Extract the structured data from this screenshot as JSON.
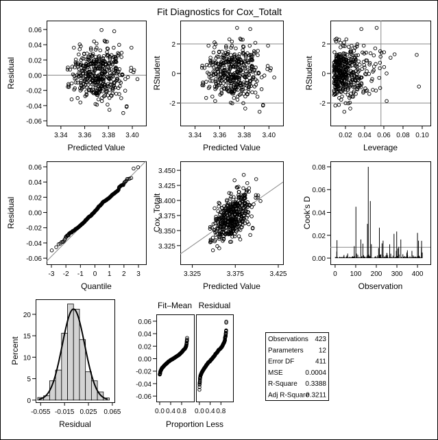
{
  "title": "Fit Diagnostics for Cox_Totalt",
  "chart_data": [
    {
      "type": "scatter",
      "name": "residual-vs-predicted",
      "xlabel": "Predicted Value",
      "ylabel": "Residual",
      "xlim": [
        3.328,
        3.4115
      ],
      "ylim": [
        -0.0663,
        0.0717
      ],
      "xticks": [
        "3.34",
        "3.36",
        "3.38",
        "3.40"
      ],
      "yticks": [
        "-0.06",
        "-0.04",
        "-0.02",
        "0.00",
        "0.02",
        "0.04",
        "0.06"
      ],
      "reference_lines_y": [
        0
      ]
    },
    {
      "type": "scatter",
      "name": "rstudent-vs-predicted",
      "xlabel": "Predicted Value",
      "ylabel": "RStudent",
      "xlim": [
        3.328,
        3.4115
      ],
      "ylim": [
        -3.53,
        3.58
      ],
      "xticks": [
        "3.34",
        "3.36",
        "3.38",
        "3.40"
      ],
      "yticks": [
        "-2",
        "0",
        "2"
      ],
      "reference_lines_y": [
        -2,
        2
      ]
    },
    {
      "type": "scatter",
      "name": "rstudent-vs-leverage",
      "xlabel": "Leverage",
      "ylabel": "RStudent",
      "xlim": [
        0.0043,
        0.1086
      ],
      "ylim": [
        -3.53,
        3.58
      ],
      "xticks": [
        "0.02",
        "0.04",
        "0.06",
        "0.08",
        "0.10"
      ],
      "yticks": [
        "-2",
        "0",
        "2"
      ],
      "reference_lines_y": [
        -2,
        2
      ],
      "reference_lines_x": [
        0.057
      ]
    },
    {
      "type": "scatter",
      "name": "qq-plot",
      "xlabel": "Quantile",
      "ylabel": "Residual",
      "xlim": [
        -3.33,
        3.52
      ],
      "ylim": [
        -0.068,
        0.0672
      ],
      "xticks": [
        "-3",
        "-2",
        "-1",
        "0",
        "1",
        "2",
        "3"
      ],
      "yticks": [
        "-0.06",
        "-0.04",
        "-0.02",
        "0.00",
        "0.02",
        "0.04",
        "0.06"
      ]
    },
    {
      "type": "scatter",
      "name": "observed-vs-predicted",
      "xlabel": "Predicted Value",
      "ylabel": "Cox_Totalt",
      "xlim": [
        3.311,
        3.4306
      ],
      "ylim": [
        3.294,
        3.465
      ],
      "xticks": [
        "3.325",
        "3.375",
        "3.425"
      ],
      "yticks": [
        "3.325",
        "3.350",
        "3.375",
        "3.400",
        "3.425",
        "3.450"
      ],
      "diagonal": true
    },
    {
      "type": "bar",
      "name": "cooks-d",
      "xlabel": "Observation",
      "ylabel": "Cook's D",
      "xlim": [
        -23,
        463
      ],
      "ylim": [
        -0.0054,
        0.0848
      ],
      "xticks": [
        "0",
        "100",
        "200",
        "300",
        "400"
      ],
      "yticks": [
        "0.00",
        "0.02",
        "0.04",
        "0.06",
        "0.08"
      ],
      "reference_lines_y": [
        0.0095
      ]
    },
    {
      "type": "bar",
      "name": "residual-histogram",
      "xlabel": "Residual",
      "ylabel": "Percent",
      "xlim": [
        -0.0634,
        0.0686
      ],
      "ylim": [
        -0.5,
        23.5
      ],
      "xticks": [
        "-0.055",
        "-0.015",
        "0.025",
        "0.065"
      ],
      "yticks": [
        "0",
        "5",
        "10",
        "15",
        "20"
      ],
      "categories": [
        -0.055,
        -0.045,
        -0.035,
        -0.025,
        -0.015,
        -0.005,
        0.005,
        0.015,
        0.025,
        0.035,
        0.045,
        0.055
      ],
      "values": [
        0.6,
        1.0,
        4.5,
        7.0,
        15.6,
        22.4,
        21.2,
        14.1,
        6.6,
        4.5,
        1.9,
        0.5
      ],
      "normal_curve": {
        "mean": 0.0,
        "sd": 0.0188
      }
    },
    {
      "type": "scatter",
      "name": "residual-fit-spread",
      "xlabel": "Proportion Less",
      "panels": [
        "Fit–Mean",
        "Residual"
      ],
      "xlim": [
        -0.125,
        1.25
      ],
      "ylim": [
        -0.0687,
        0.0709
      ],
      "xticks": [
        "0.0",
        "0.4",
        "0.8"
      ],
      "yticks": [
        "-0.06",
        "-0.04",
        "-0.02",
        "0.00",
        "0.02",
        "0.04",
        "0.06"
      ]
    }
  ],
  "stats": [
    {
      "label": "Observations",
      "value": "423"
    },
    {
      "label": "Parameters",
      "value": "12"
    },
    {
      "label": "Error DF",
      "value": "411"
    },
    {
      "label": "MSE",
      "value": "0.0004"
    },
    {
      "label": "R-Square",
      "value": "0.3388"
    },
    {
      "label": "Adj R-Square",
      "value": "0.3211"
    }
  ]
}
